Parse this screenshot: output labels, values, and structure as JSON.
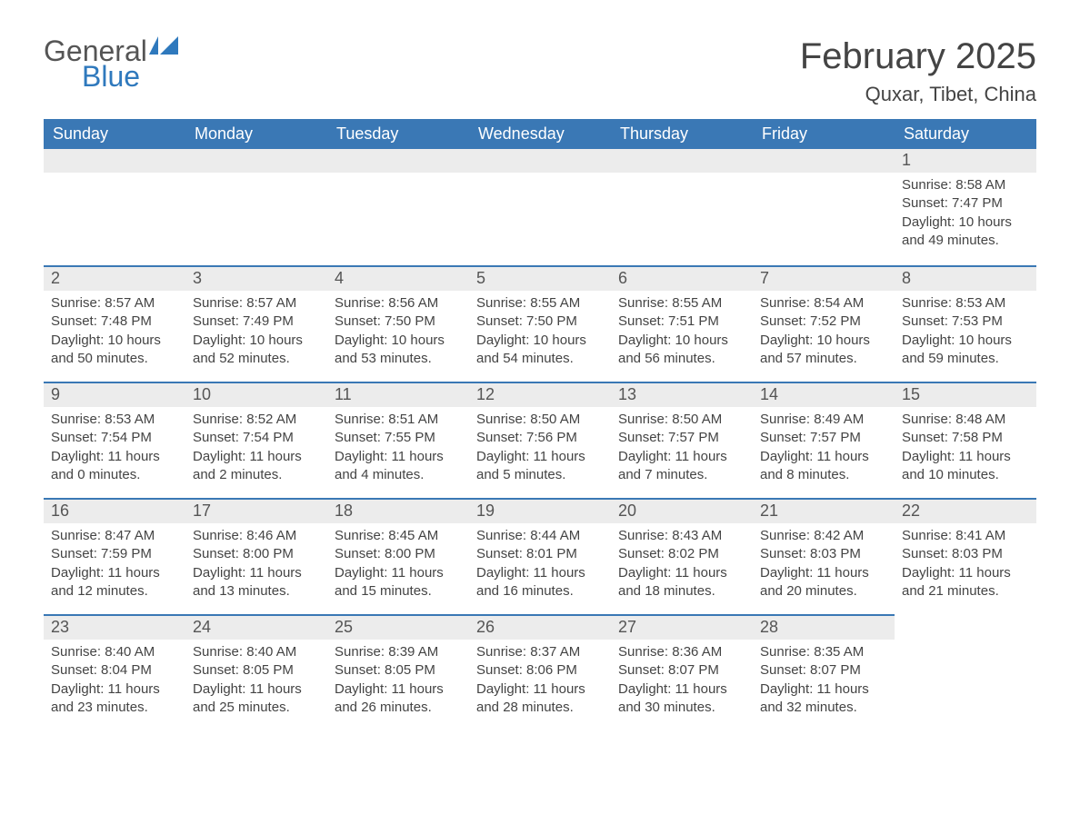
{
  "logo": {
    "general": "General",
    "blue": "Blue",
    "flag_color": "#2f79bd"
  },
  "title": "February 2025",
  "location": "Quxar, Tibet, China",
  "header_bg": "#3a78b5",
  "header_text_color": "#ffffff",
  "daybar_bg": "#ececec",
  "daybar_border": "#3a78b5",
  "body_text_color": "#444444",
  "days_of_week": [
    "Sunday",
    "Monday",
    "Tuesday",
    "Wednesday",
    "Thursday",
    "Friday",
    "Saturday"
  ],
  "first_day_col": 6,
  "days": [
    {
      "n": 1,
      "sunrise": "8:58 AM",
      "sunset": "7:47 PM",
      "daylight": "10 hours and 49 minutes."
    },
    {
      "n": 2,
      "sunrise": "8:57 AM",
      "sunset": "7:48 PM",
      "daylight": "10 hours and 50 minutes."
    },
    {
      "n": 3,
      "sunrise": "8:57 AM",
      "sunset": "7:49 PM",
      "daylight": "10 hours and 52 minutes."
    },
    {
      "n": 4,
      "sunrise": "8:56 AM",
      "sunset": "7:50 PM",
      "daylight": "10 hours and 53 minutes."
    },
    {
      "n": 5,
      "sunrise": "8:55 AM",
      "sunset": "7:50 PM",
      "daylight": "10 hours and 54 minutes."
    },
    {
      "n": 6,
      "sunrise": "8:55 AM",
      "sunset": "7:51 PM",
      "daylight": "10 hours and 56 minutes."
    },
    {
      "n": 7,
      "sunrise": "8:54 AM",
      "sunset": "7:52 PM",
      "daylight": "10 hours and 57 minutes."
    },
    {
      "n": 8,
      "sunrise": "8:53 AM",
      "sunset": "7:53 PM",
      "daylight": "10 hours and 59 minutes."
    },
    {
      "n": 9,
      "sunrise": "8:53 AM",
      "sunset": "7:54 PM",
      "daylight": "11 hours and 0 minutes."
    },
    {
      "n": 10,
      "sunrise": "8:52 AM",
      "sunset": "7:54 PM",
      "daylight": "11 hours and 2 minutes."
    },
    {
      "n": 11,
      "sunrise": "8:51 AM",
      "sunset": "7:55 PM",
      "daylight": "11 hours and 4 minutes."
    },
    {
      "n": 12,
      "sunrise": "8:50 AM",
      "sunset": "7:56 PM",
      "daylight": "11 hours and 5 minutes."
    },
    {
      "n": 13,
      "sunrise": "8:50 AM",
      "sunset": "7:57 PM",
      "daylight": "11 hours and 7 minutes."
    },
    {
      "n": 14,
      "sunrise": "8:49 AM",
      "sunset": "7:57 PM",
      "daylight": "11 hours and 8 minutes."
    },
    {
      "n": 15,
      "sunrise": "8:48 AM",
      "sunset": "7:58 PM",
      "daylight": "11 hours and 10 minutes."
    },
    {
      "n": 16,
      "sunrise": "8:47 AM",
      "sunset": "7:59 PM",
      "daylight": "11 hours and 12 minutes."
    },
    {
      "n": 17,
      "sunrise": "8:46 AM",
      "sunset": "8:00 PM",
      "daylight": "11 hours and 13 minutes."
    },
    {
      "n": 18,
      "sunrise": "8:45 AM",
      "sunset": "8:00 PM",
      "daylight": "11 hours and 15 minutes."
    },
    {
      "n": 19,
      "sunrise": "8:44 AM",
      "sunset": "8:01 PM",
      "daylight": "11 hours and 16 minutes."
    },
    {
      "n": 20,
      "sunrise": "8:43 AM",
      "sunset": "8:02 PM",
      "daylight": "11 hours and 18 minutes."
    },
    {
      "n": 21,
      "sunrise": "8:42 AM",
      "sunset": "8:03 PM",
      "daylight": "11 hours and 20 minutes."
    },
    {
      "n": 22,
      "sunrise": "8:41 AM",
      "sunset": "8:03 PM",
      "daylight": "11 hours and 21 minutes."
    },
    {
      "n": 23,
      "sunrise": "8:40 AM",
      "sunset": "8:04 PM",
      "daylight": "11 hours and 23 minutes."
    },
    {
      "n": 24,
      "sunrise": "8:40 AM",
      "sunset": "8:05 PM",
      "daylight": "11 hours and 25 minutes."
    },
    {
      "n": 25,
      "sunrise": "8:39 AM",
      "sunset": "8:05 PM",
      "daylight": "11 hours and 26 minutes."
    },
    {
      "n": 26,
      "sunrise": "8:37 AM",
      "sunset": "8:06 PM",
      "daylight": "11 hours and 28 minutes."
    },
    {
      "n": 27,
      "sunrise": "8:36 AM",
      "sunset": "8:07 PM",
      "daylight": "11 hours and 30 minutes."
    },
    {
      "n": 28,
      "sunrise": "8:35 AM",
      "sunset": "8:07 PM",
      "daylight": "11 hours and 32 minutes."
    }
  ],
  "labels": {
    "sunrise": "Sunrise: ",
    "sunset": "Sunset: ",
    "daylight": "Daylight: "
  }
}
